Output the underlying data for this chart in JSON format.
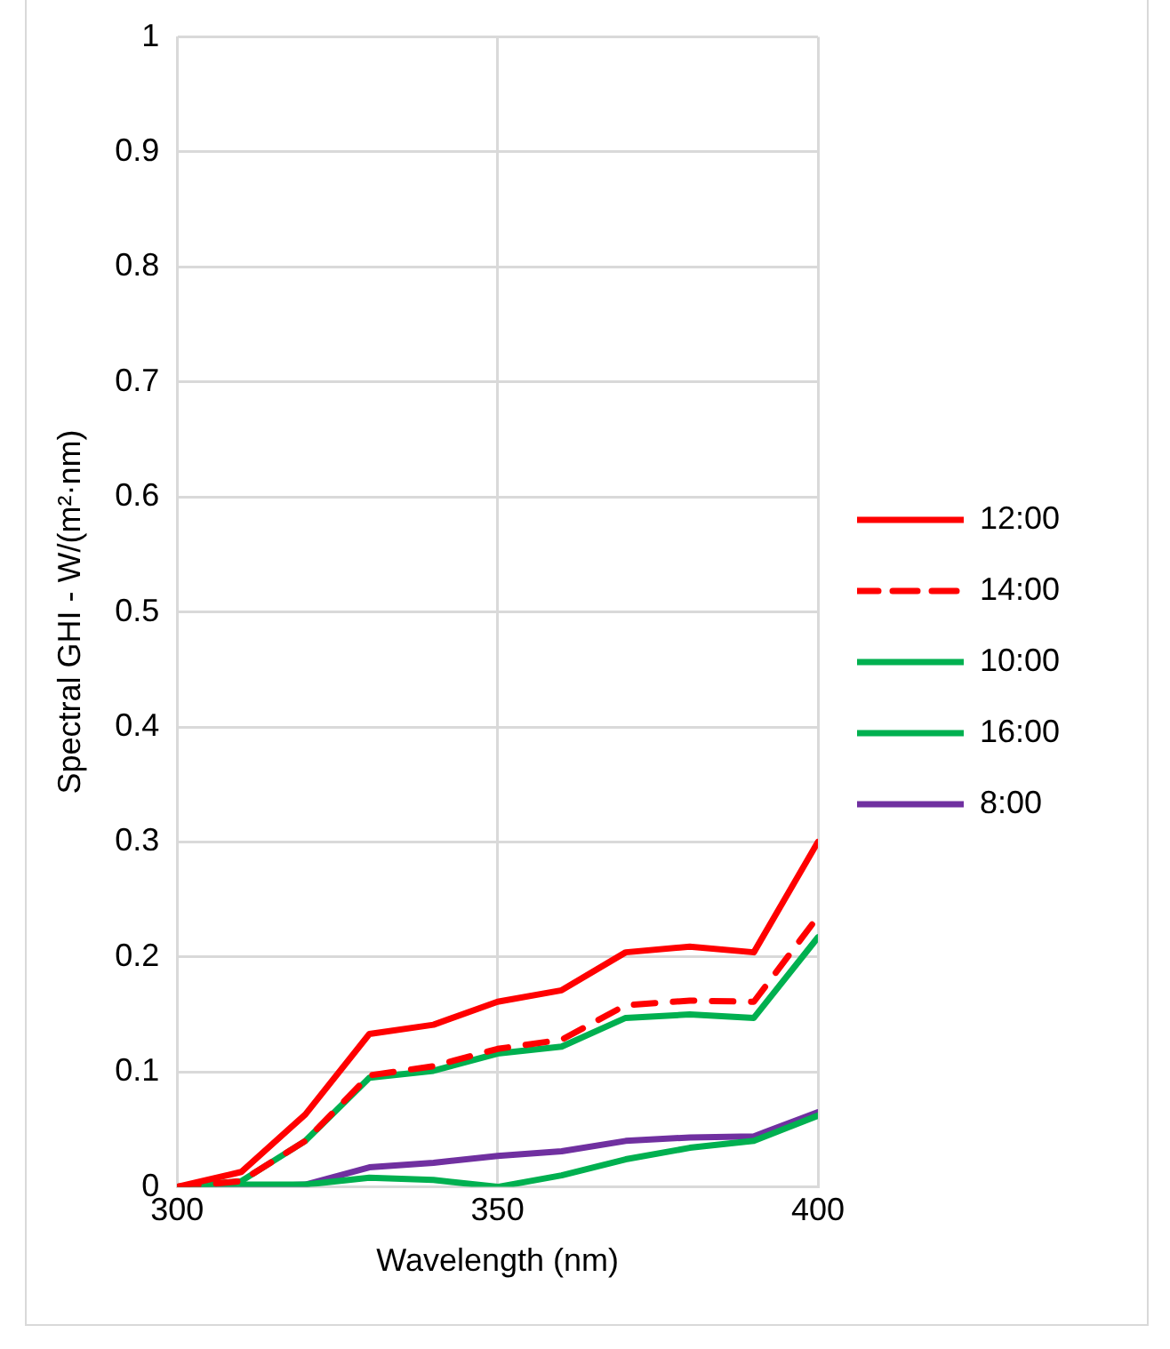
{
  "chart_data": {
    "type": "line",
    "xlabel": "Wavelength (nm)",
    "ylabel": "Spectral GHI - W/(m²·nm)",
    "x": [
      300,
      310,
      320,
      330,
      340,
      350,
      360,
      370,
      380,
      390,
      400
    ],
    "xlim": [
      300,
      400
    ],
    "xticks": [
      300,
      350,
      400
    ],
    "ylim": [
      0,
      1
    ],
    "yticks": [
      0,
      0.1,
      0.2,
      0.3,
      0.4,
      0.5,
      0.6,
      0.7,
      0.8,
      0.9,
      1
    ],
    "grid": true,
    "legend": "right",
    "marker": "none",
    "series": [
      {
        "name": "12:00",
        "color": "#ff0000",
        "values": [
          0,
          0.013,
          0.063,
          0.133,
          0.141,
          0.161,
          0.171,
          0.204,
          0.209,
          0.204,
          0.3
        ]
      },
      {
        "name": "14:00",
        "color": "#ff0000",
        "line_style": "dashed",
        "values": [
          0,
          0.005,
          0.04,
          0.097,
          0.105,
          0.12,
          0.128,
          0.158,
          0.162,
          0.161,
          0.235
        ]
      },
      {
        "name": "10:00",
        "color": "#00b050",
        "values": [
          0,
          0.005,
          0.04,
          0.095,
          0.101,
          0.116,
          0.122,
          0.147,
          0.15,
          0.147,
          0.217
        ]
      },
      {
        "name": "16:00",
        "color": "#00b050",
        "values": [
          0,
          0.002,
          0.002,
          0.008,
          0.006,
          0,
          0.01,
          0.024,
          0.034,
          0.04,
          0.062
        ]
      },
      {
        "name": "8:00",
        "color": "#7030a0",
        "values": [
          0,
          0,
          0.002,
          0.017,
          0.021,
          0.027,
          0.031,
          0.04,
          0.043,
          0.044,
          0.065
        ]
      }
    ]
  }
}
